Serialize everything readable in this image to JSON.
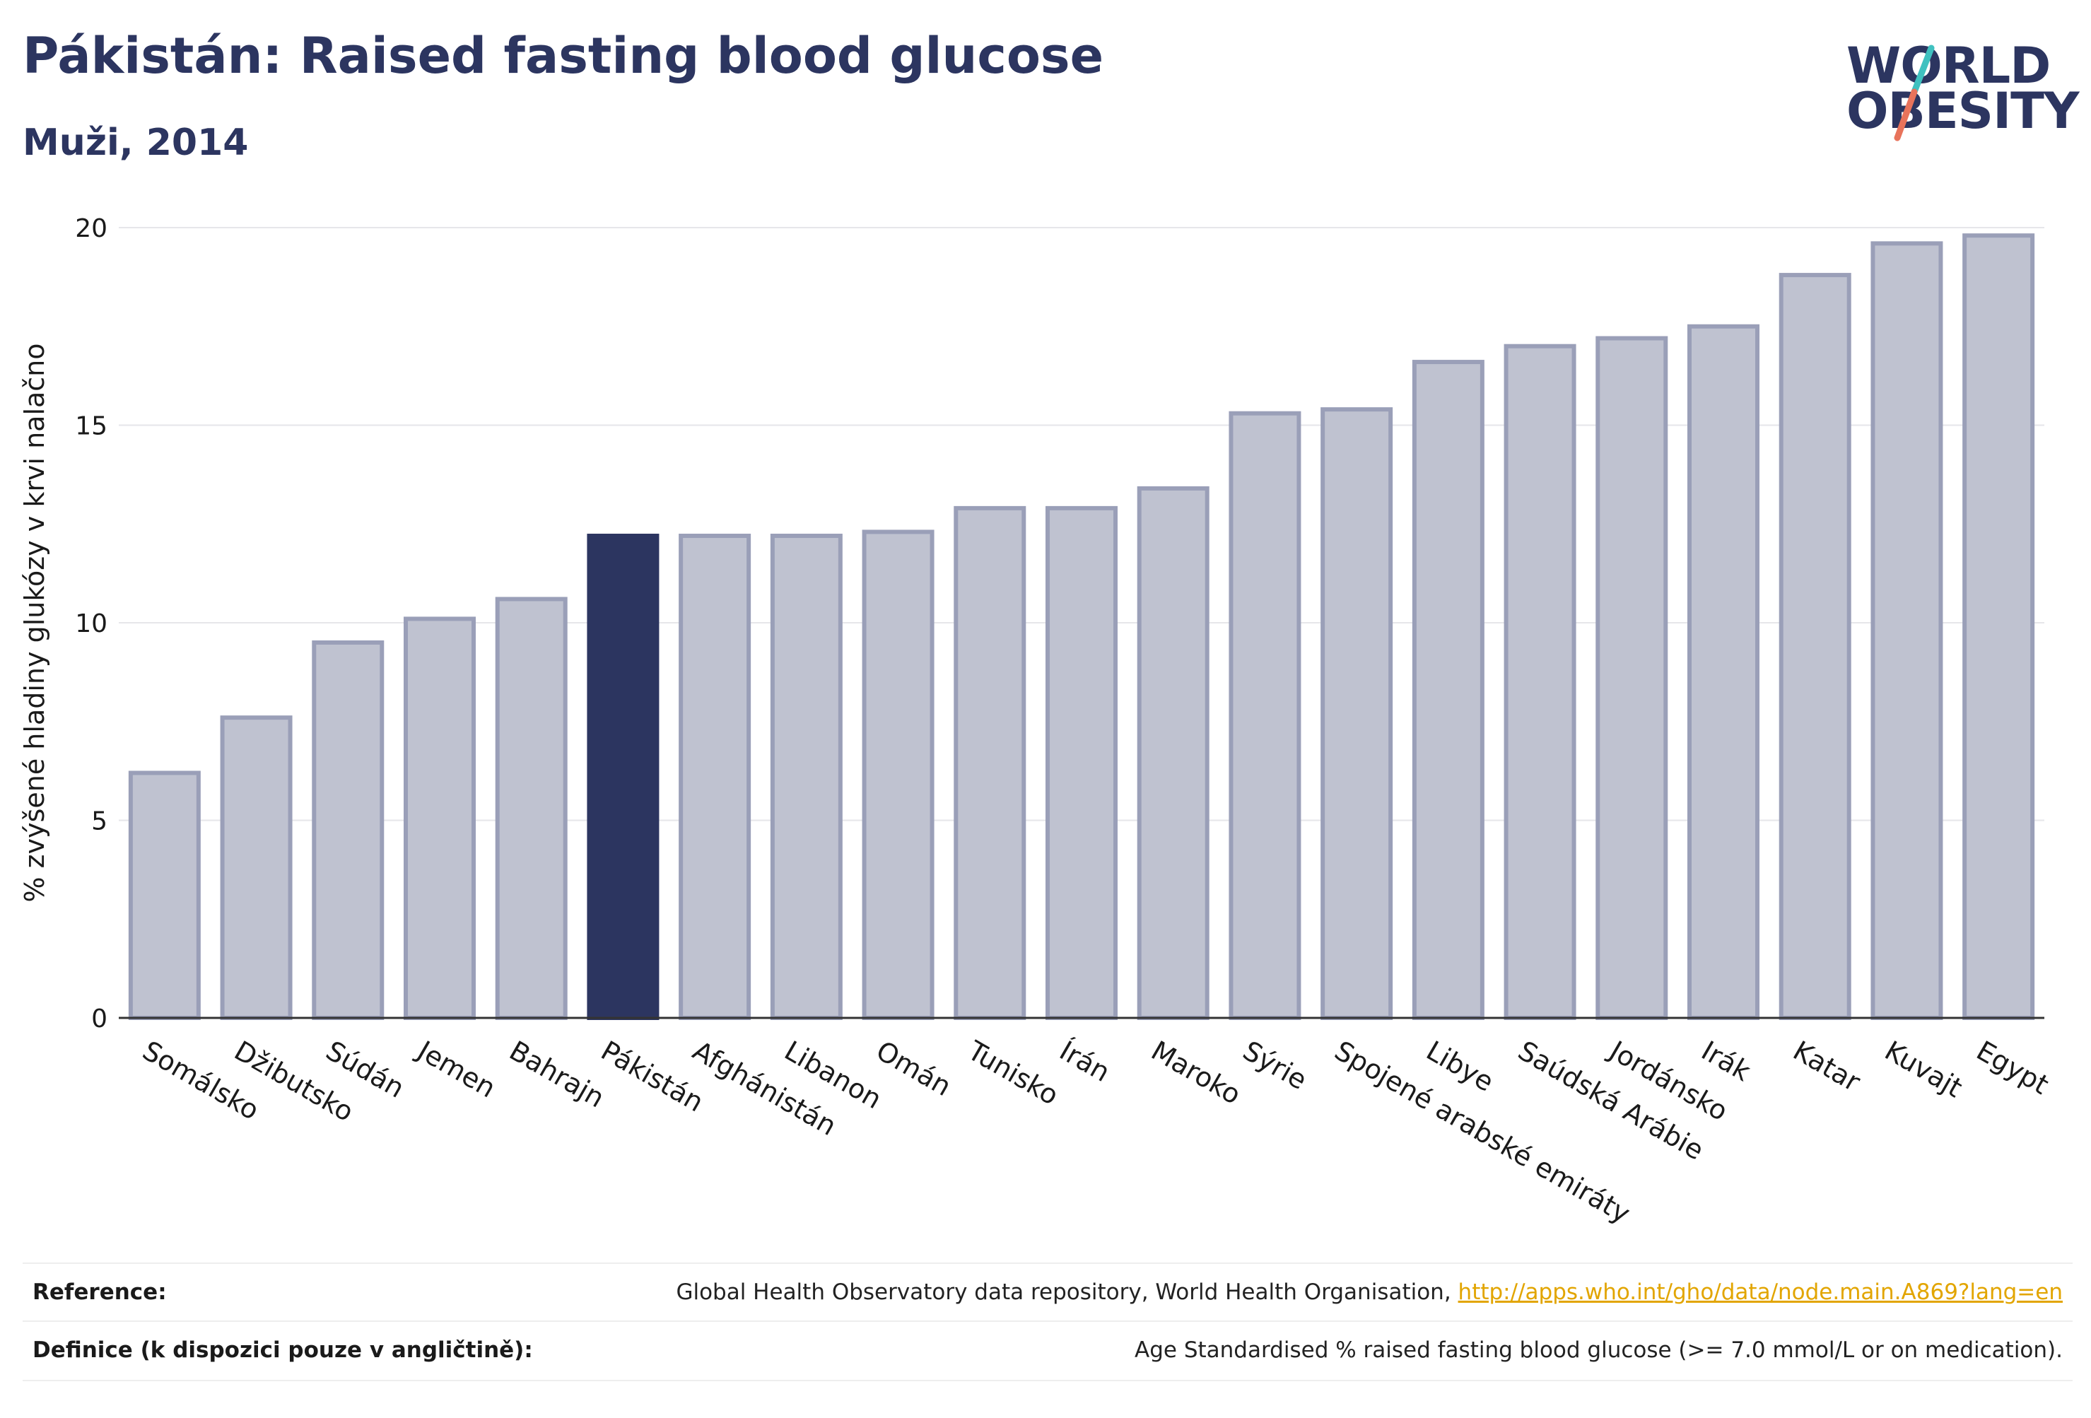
{
  "header": {
    "title": "Pákistán: Raised fasting blood glucose",
    "subtitle": "Muži, 2014"
  },
  "logo": {
    "line1": "WORLD",
    "line2": "OBESITY",
    "slash_colors": [
      "#3fc1c0",
      "#e8735b"
    ]
  },
  "chart_data": {
    "type": "bar",
    "ylabel": "% zvýšené hladiny glukózy v krvi nalačno",
    "ylim": [
      0,
      20
    ],
    "yticks": [
      0,
      5,
      10,
      15,
      20
    ],
    "grid": true,
    "highlight": "Pákistán",
    "colors": {
      "bar": "#bfc2d0",
      "bar_border": "#9a9fb8",
      "highlight": "#2c3560"
    },
    "categories": [
      "Somálsko",
      "Džibutsko",
      "Súdán",
      "Jemen",
      "Bahrajn",
      "Pákistán",
      "Afghánistán",
      "Libanon",
      "Omán",
      "Tunisko",
      "Írán",
      "Maroko",
      "Sýrie",
      "Spojené arabské emiráty",
      "Libye",
      "Saúdská Arábie",
      "Jordánsko",
      "Irák",
      "Katar",
      "Kuvajt",
      "Egypt"
    ],
    "values": [
      6.2,
      7.6,
      9.5,
      10.1,
      10.6,
      12.2,
      12.2,
      12.2,
      12.3,
      12.9,
      12.9,
      13.4,
      15.3,
      15.4,
      16.6,
      17.0,
      17.2,
      17.5,
      18.8,
      19.6,
      19.8
    ]
  },
  "footer": {
    "reference_label": "Reference:",
    "reference_text": "Global Health Observatory data repository, World Health Organisation, ",
    "reference_link": "http://apps.who.int/gho/data/node.main.A869?lang=en",
    "definition_label": "Definice (k dispozici pouze v angličtině):",
    "definition_text": "Age Standardised % raised fasting blood glucose (>= 7.0 mmol/L or on medication)."
  }
}
